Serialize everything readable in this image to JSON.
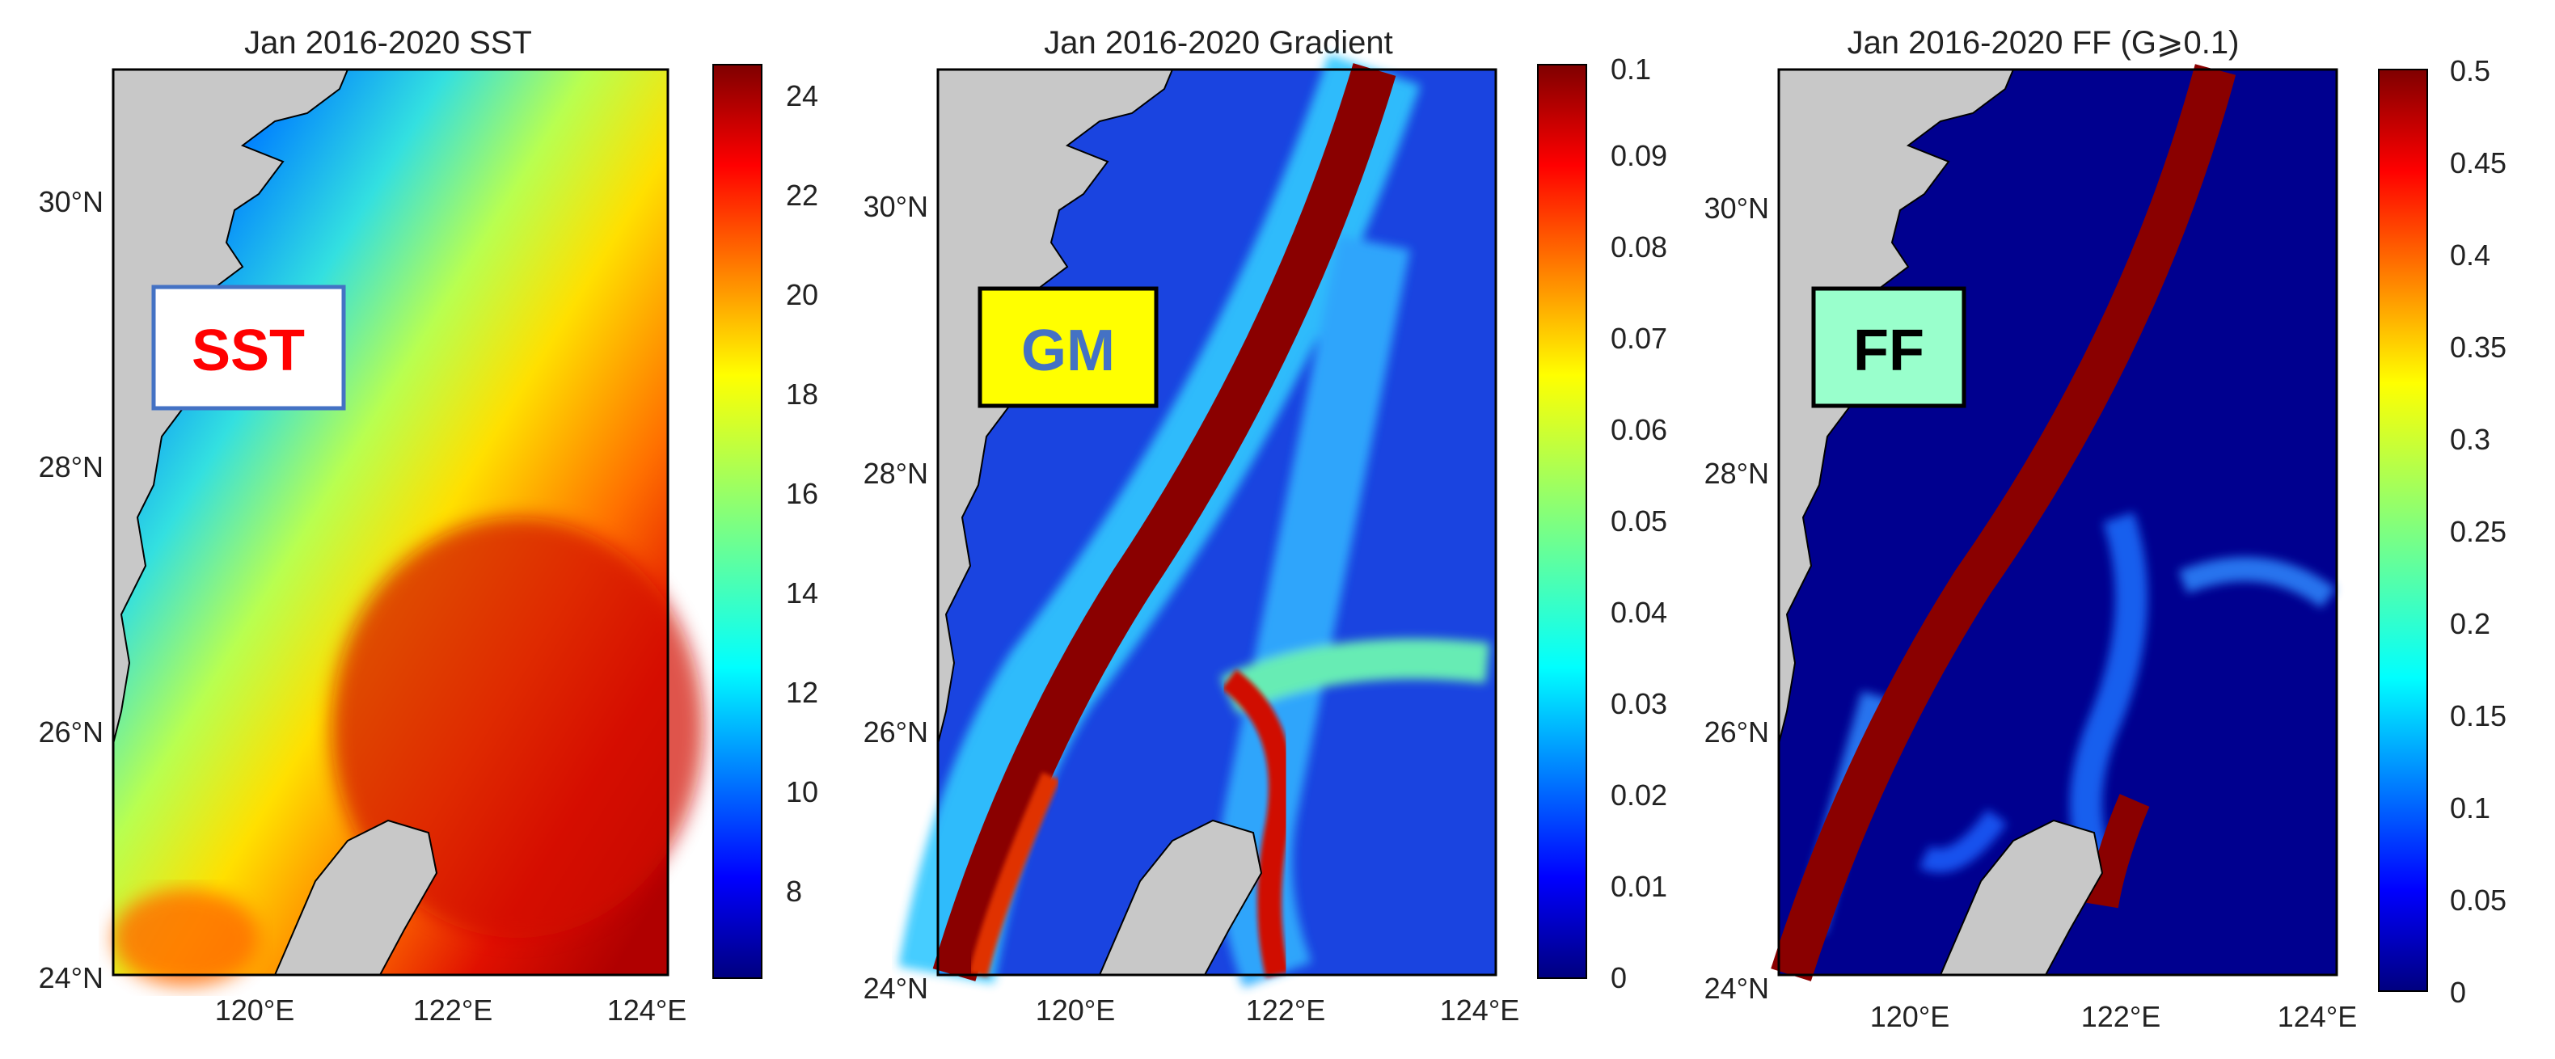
{
  "figure": {
    "panels": [
      {
        "id": "sst",
        "title": "Jan 2016-2020 SST",
        "badge": {
          "label": "SST",
          "text_color": "#ff0000",
          "bg": "#ffffff",
          "border": "#4472c4"
        },
        "colorbar": {
          "ticks": [
            "8",
            "10",
            "12",
            "14",
            "16",
            "18",
            "20",
            "22",
            "24"
          ]
        }
      },
      {
        "id": "gradient",
        "title": "Jan 2016-2020 Gradient",
        "badge": {
          "label": "GM",
          "text_color": "#4472c4",
          "bg": "#ffff00",
          "border": "#000000"
        },
        "colorbar": {
          "ticks": [
            "0",
            "0.01",
            "0.02",
            "0.03",
            "0.04",
            "0.05",
            "0.06",
            "0.07",
            "0.08",
            "0.09",
            "0.1"
          ]
        }
      },
      {
        "id": "ff",
        "title": "Jan 2016-2020 FF (G⩾0.1)",
        "badge": {
          "label": "FF",
          "text_color": "#000000",
          "bg": "#99ffcc",
          "border": "#000000"
        },
        "colorbar": {
          "ticks": [
            "0",
            "0.05",
            "0.1",
            "0.15",
            "0.2",
            "0.25",
            "0.3",
            "0.35",
            "0.4",
            "0.45",
            "0.5"
          ]
        }
      }
    ],
    "latitude_labels": [
      "24°N",
      "26°N",
      "28°N",
      "30°N"
    ],
    "longitude_labels": [
      "120°E",
      "122°E",
      "124°E"
    ],
    "colors": {
      "land": "#c8c8c8",
      "coastline": "#000000",
      "jet": [
        "#00007f",
        "#0000ff",
        "#007fff",
        "#00ffff",
        "#7fff7f",
        "#ffff00",
        "#ff7f00",
        "#ff0000",
        "#7f0000"
      ]
    }
  }
}
